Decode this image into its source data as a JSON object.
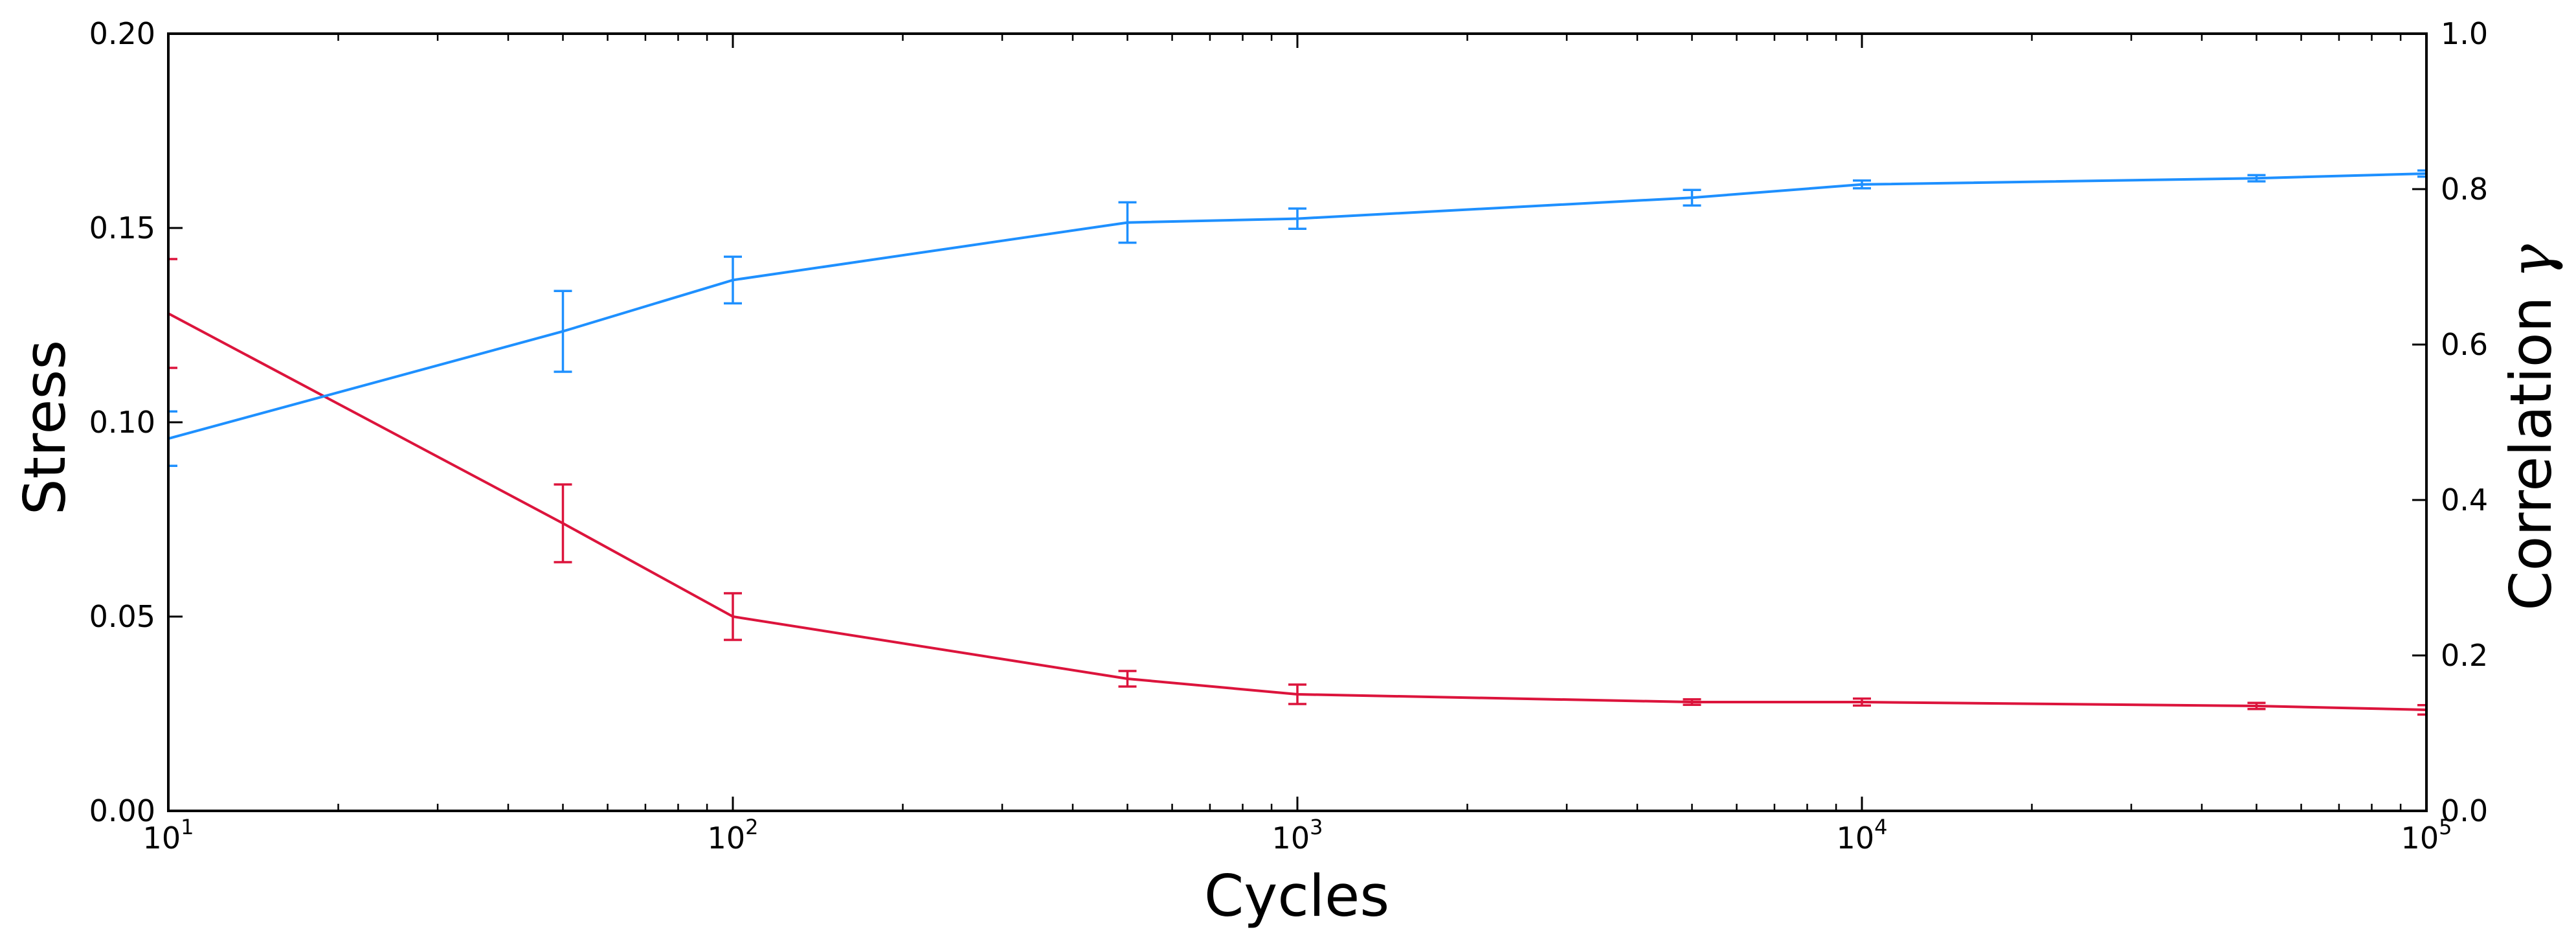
{
  "chart_data": {
    "type": "line",
    "x_scale": "log",
    "xlabel": "Cycles",
    "ylabel_left": "Stress",
    "ylabel_right": "Correlation",
    "ylabel_right_symbol": "γ",
    "xlim": [
      10,
      100000
    ],
    "ylim_left": [
      0.0,
      0.2
    ],
    "ylim_right": [
      0.0,
      1.0
    ],
    "x_ticks": [
      {
        "base": "10",
        "exp": "1"
      },
      {
        "base": "10",
        "exp": "2"
      },
      {
        "base": "10",
        "exp": "3"
      },
      {
        "base": "10",
        "exp": "4"
      },
      {
        "base": "10",
        "exp": "5"
      }
    ],
    "y_ticks_left": [
      "0.00",
      "0.05",
      "0.10",
      "0.15",
      "0.20"
    ],
    "y_ticks_right": [
      "0.0",
      "0.2",
      "0.4",
      "0.6",
      "0.8",
      "1.0"
    ],
    "grid": false,
    "x": [
      10,
      50,
      100,
      500,
      1000,
      5000,
      10000,
      50000,
      100000
    ],
    "series": [
      {
        "axis": "left",
        "color": "#dc143c",
        "values": [
          0.128,
          0.074,
          0.05,
          0.034,
          0.03,
          0.028,
          0.028,
          0.027,
          0.026
        ],
        "errors": [
          0.014,
          0.01,
          0.006,
          0.002,
          0.0025,
          0.0007,
          0.0009,
          0.0008,
          0.0012
        ]
      },
      {
        "axis": "right",
        "color": "#1e90ff",
        "values": [
          0.479,
          0.617,
          0.683,
          0.757,
          0.762,
          0.789,
          0.806,
          0.814,
          0.82
        ],
        "errors": [
          0.035,
          0.052,
          0.03,
          0.026,
          0.013,
          0.01,
          0.005,
          0.004,
          0.004
        ]
      }
    ]
  }
}
